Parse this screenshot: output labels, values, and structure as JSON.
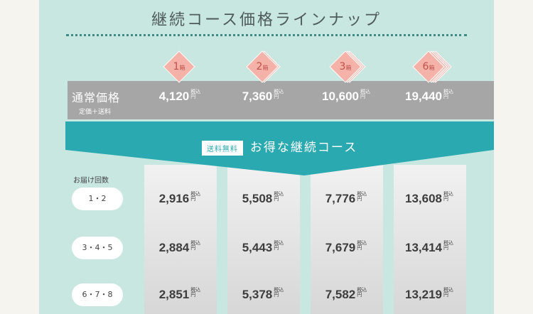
{
  "title": "継続コース価格ラインナップ",
  "columns": [
    {
      "boxes": "1",
      "unit": "箱",
      "normal_price": "4,120"
    },
    {
      "boxes": "2",
      "unit": "箱",
      "normal_price": "7,360"
    },
    {
      "boxes": "3",
      "unit": "箱",
      "normal_price": "10,600"
    },
    {
      "boxes": "6",
      "unit": "箱",
      "normal_price": "19,440"
    }
  ],
  "normal": {
    "label": "通常価格",
    "sub": "定価＋送料"
  },
  "tax_label": {
    "line1": "税込",
    "line2": "円"
  },
  "course": {
    "badge": "送料無料",
    "label": "お得な継続コース"
  },
  "delivery_header": "お届け回数",
  "rows": [
    {
      "label": "1・2",
      "prices": [
        "2,916",
        "5,508",
        "7,776",
        "13,608"
      ]
    },
    {
      "label": "3・4・5",
      "prices": [
        "2,884",
        "5,443",
        "7,679",
        "13,414"
      ]
    },
    {
      "label": "6・7・8",
      "prices": [
        "2,851",
        "5,378",
        "7,582",
        "13,219"
      ]
    }
  ],
  "colors": {
    "panel": "#c8e7e1",
    "teal": "#2aa9b1",
    "gray_band": "#a6a6a6",
    "diamond": "#f4b2a8"
  }
}
